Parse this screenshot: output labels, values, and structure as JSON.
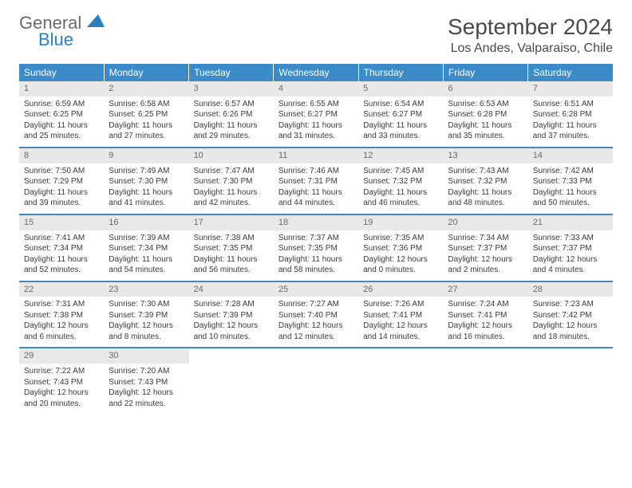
{
  "logo": {
    "word1": "General",
    "word2": "Blue",
    "word1_color": "#6a6a6a",
    "word2_color": "#2a7fbf",
    "icon_color": "#2a7fbf"
  },
  "header": {
    "month_title": "September 2024",
    "location": "Los Andes, Valparaiso, Chile"
  },
  "styling": {
    "header_bg": "#3b8bc9",
    "header_text": "#ffffff",
    "daynum_bg": "#e8e8e8",
    "daynum_text": "#6a6a6a",
    "body_text": "#3a3a3a",
    "row_border": "#3b8bc9",
    "page_bg": "#ffffff",
    "font_family": "Arial",
    "day_fontsize": 10,
    "header_fontsize": 12,
    "title_fontsize": 28,
    "location_fontsize": 16
  },
  "weekdays": [
    "Sunday",
    "Monday",
    "Tuesday",
    "Wednesday",
    "Thursday",
    "Friday",
    "Saturday"
  ],
  "weeks": [
    [
      {
        "n": "1",
        "sunrise": "Sunrise: 6:59 AM",
        "sunset": "Sunset: 6:25 PM",
        "day1": "Daylight: 11 hours",
        "day2": "and 25 minutes."
      },
      {
        "n": "2",
        "sunrise": "Sunrise: 6:58 AM",
        "sunset": "Sunset: 6:25 PM",
        "day1": "Daylight: 11 hours",
        "day2": "and 27 minutes."
      },
      {
        "n": "3",
        "sunrise": "Sunrise: 6:57 AM",
        "sunset": "Sunset: 6:26 PM",
        "day1": "Daylight: 11 hours",
        "day2": "and 29 minutes."
      },
      {
        "n": "4",
        "sunrise": "Sunrise: 6:55 AM",
        "sunset": "Sunset: 6:27 PM",
        "day1": "Daylight: 11 hours",
        "day2": "and 31 minutes."
      },
      {
        "n": "5",
        "sunrise": "Sunrise: 6:54 AM",
        "sunset": "Sunset: 6:27 PM",
        "day1": "Daylight: 11 hours",
        "day2": "and 33 minutes."
      },
      {
        "n": "6",
        "sunrise": "Sunrise: 6:53 AM",
        "sunset": "Sunset: 6:28 PM",
        "day1": "Daylight: 11 hours",
        "day2": "and 35 minutes."
      },
      {
        "n": "7",
        "sunrise": "Sunrise: 6:51 AM",
        "sunset": "Sunset: 6:28 PM",
        "day1": "Daylight: 11 hours",
        "day2": "and 37 minutes."
      }
    ],
    [
      {
        "n": "8",
        "sunrise": "Sunrise: 7:50 AM",
        "sunset": "Sunset: 7:29 PM",
        "day1": "Daylight: 11 hours",
        "day2": "and 39 minutes."
      },
      {
        "n": "9",
        "sunrise": "Sunrise: 7:49 AM",
        "sunset": "Sunset: 7:30 PM",
        "day1": "Daylight: 11 hours",
        "day2": "and 41 minutes."
      },
      {
        "n": "10",
        "sunrise": "Sunrise: 7:47 AM",
        "sunset": "Sunset: 7:30 PM",
        "day1": "Daylight: 11 hours",
        "day2": "and 42 minutes."
      },
      {
        "n": "11",
        "sunrise": "Sunrise: 7:46 AM",
        "sunset": "Sunset: 7:31 PM",
        "day1": "Daylight: 11 hours",
        "day2": "and 44 minutes."
      },
      {
        "n": "12",
        "sunrise": "Sunrise: 7:45 AM",
        "sunset": "Sunset: 7:32 PM",
        "day1": "Daylight: 11 hours",
        "day2": "and 46 minutes."
      },
      {
        "n": "13",
        "sunrise": "Sunrise: 7:43 AM",
        "sunset": "Sunset: 7:32 PM",
        "day1": "Daylight: 11 hours",
        "day2": "and 48 minutes."
      },
      {
        "n": "14",
        "sunrise": "Sunrise: 7:42 AM",
        "sunset": "Sunset: 7:33 PM",
        "day1": "Daylight: 11 hours",
        "day2": "and 50 minutes."
      }
    ],
    [
      {
        "n": "15",
        "sunrise": "Sunrise: 7:41 AM",
        "sunset": "Sunset: 7:34 PM",
        "day1": "Daylight: 11 hours",
        "day2": "and 52 minutes."
      },
      {
        "n": "16",
        "sunrise": "Sunrise: 7:39 AM",
        "sunset": "Sunset: 7:34 PM",
        "day1": "Daylight: 11 hours",
        "day2": "and 54 minutes."
      },
      {
        "n": "17",
        "sunrise": "Sunrise: 7:38 AM",
        "sunset": "Sunset: 7:35 PM",
        "day1": "Daylight: 11 hours",
        "day2": "and 56 minutes."
      },
      {
        "n": "18",
        "sunrise": "Sunrise: 7:37 AM",
        "sunset": "Sunset: 7:35 PM",
        "day1": "Daylight: 11 hours",
        "day2": "and 58 minutes."
      },
      {
        "n": "19",
        "sunrise": "Sunrise: 7:35 AM",
        "sunset": "Sunset: 7:36 PM",
        "day1": "Daylight: 12 hours",
        "day2": "and 0 minutes."
      },
      {
        "n": "20",
        "sunrise": "Sunrise: 7:34 AM",
        "sunset": "Sunset: 7:37 PM",
        "day1": "Daylight: 12 hours",
        "day2": "and 2 minutes."
      },
      {
        "n": "21",
        "sunrise": "Sunrise: 7:33 AM",
        "sunset": "Sunset: 7:37 PM",
        "day1": "Daylight: 12 hours",
        "day2": "and 4 minutes."
      }
    ],
    [
      {
        "n": "22",
        "sunrise": "Sunrise: 7:31 AM",
        "sunset": "Sunset: 7:38 PM",
        "day1": "Daylight: 12 hours",
        "day2": "and 6 minutes."
      },
      {
        "n": "23",
        "sunrise": "Sunrise: 7:30 AM",
        "sunset": "Sunset: 7:39 PM",
        "day1": "Daylight: 12 hours",
        "day2": "and 8 minutes."
      },
      {
        "n": "24",
        "sunrise": "Sunrise: 7:28 AM",
        "sunset": "Sunset: 7:39 PM",
        "day1": "Daylight: 12 hours",
        "day2": "and 10 minutes."
      },
      {
        "n": "25",
        "sunrise": "Sunrise: 7:27 AM",
        "sunset": "Sunset: 7:40 PM",
        "day1": "Daylight: 12 hours",
        "day2": "and 12 minutes."
      },
      {
        "n": "26",
        "sunrise": "Sunrise: 7:26 AM",
        "sunset": "Sunset: 7:41 PM",
        "day1": "Daylight: 12 hours",
        "day2": "and 14 minutes."
      },
      {
        "n": "27",
        "sunrise": "Sunrise: 7:24 AM",
        "sunset": "Sunset: 7:41 PM",
        "day1": "Daylight: 12 hours",
        "day2": "and 16 minutes."
      },
      {
        "n": "28",
        "sunrise": "Sunrise: 7:23 AM",
        "sunset": "Sunset: 7:42 PM",
        "day1": "Daylight: 12 hours",
        "day2": "and 18 minutes."
      }
    ],
    [
      {
        "n": "29",
        "sunrise": "Sunrise: 7:22 AM",
        "sunset": "Sunset: 7:43 PM",
        "day1": "Daylight: 12 hours",
        "day2": "and 20 minutes."
      },
      {
        "n": "30",
        "sunrise": "Sunrise: 7:20 AM",
        "sunset": "Sunset: 7:43 PM",
        "day1": "Daylight: 12 hours",
        "day2": "and 22 minutes."
      },
      null,
      null,
      null,
      null,
      null
    ]
  ]
}
